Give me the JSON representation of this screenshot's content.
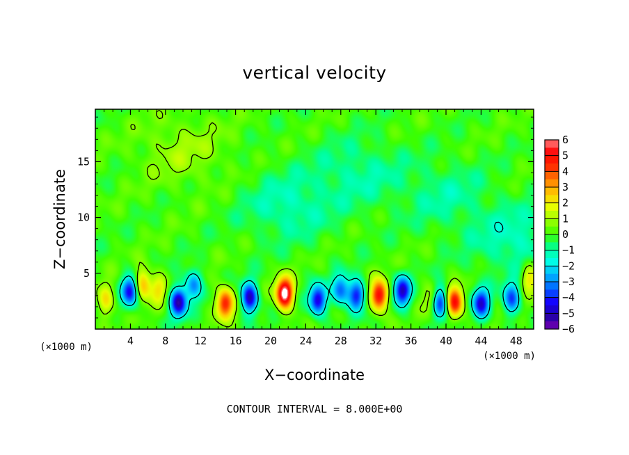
{
  "chart_data": {
    "type": "heatmap",
    "title": "vertical velocity",
    "xlabel": "X−coordinate",
    "ylabel": "Z−coordinate",
    "x_unit": "(×1000 m)",
    "y_unit": "(×1000 m)",
    "xlim": [
      0,
      50
    ],
    "ylim": [
      0,
      19.7
    ],
    "x_ticks": [
      4,
      8,
      12,
      16,
      20,
      24,
      28,
      32,
      36,
      40,
      44,
      48
    ],
    "x_tick_labels": [
      "4",
      "8",
      "12",
      "16",
      "20",
      "24",
      "28",
      "32",
      "36",
      "40",
      "44",
      "48"
    ],
    "y_ticks": [
      5,
      10,
      15
    ],
    "y_tick_labels": [
      "5",
      "10",
      "15"
    ],
    "colorbar": {
      "min": -6,
      "max": 6,
      "tick_labels": [
        "6",
        "5",
        "4",
        "3",
        "2",
        "1",
        "0",
        "−1",
        "−2",
        "−3",
        "−4",
        "−5",
        "−6"
      ],
      "colors": [
        "#7a00b0",
        "#1f00a8",
        "#1400ff",
        "#0064ff",
        "#00b4ff",
        "#00ffe6",
        "#00ff96",
        "#3cff00",
        "#96ff00",
        "#e6ff00",
        "#ffcc00",
        "#ff8000",
        "#ff3000",
        "#ff0000",
        "#ff8080"
      ]
    },
    "features": [
      {
        "x": 1.2,
        "z": 2.6,
        "w": 2.2
      },
      {
        "x": 4.0,
        "z": 3.4,
        "w": -4.5
      },
      {
        "x": 5.4,
        "z": 4.0,
        "w": 3.2
      },
      {
        "x": 7.2,
        "z": 3.6,
        "w": 2.0
      },
      {
        "x": 9.5,
        "z": 2.4,
        "w": -5.2
      },
      {
        "x": 11.2,
        "z": 4.0,
        "w": -3.0
      },
      {
        "x": 14.8,
        "z": 2.3,
        "w": 4.8
      },
      {
        "x": 17.6,
        "z": 2.8,
        "w": -5.0
      },
      {
        "x": 21.6,
        "z": 3.2,
        "w": 6.8
      },
      {
        "x": 25.4,
        "z": 2.6,
        "w": -4.8
      },
      {
        "x": 28.0,
        "z": 3.5,
        "w": -3.5
      },
      {
        "x": 29.8,
        "z": 3.0,
        "w": -4.2
      },
      {
        "x": 32.4,
        "z": 3.0,
        "w": 5.4
      },
      {
        "x": 35.0,
        "z": 3.4,
        "w": -4.8
      },
      {
        "x": 38.5,
        "z": 2.6,
        "w": 2.0
      },
      {
        "x": 39.3,
        "z": 2.4,
        "w": -5.0
      },
      {
        "x": 41.0,
        "z": 2.4,
        "w": 5.2
      },
      {
        "x": 44.0,
        "z": 2.3,
        "w": -4.5
      },
      {
        "x": 47.5,
        "z": 2.7,
        "w": -3.6
      },
      {
        "x": 49.5,
        "z": 4.6,
        "w": 2.4
      },
      {
        "x": 48.0,
        "z": 8.0,
        "w": -1.3
      },
      {
        "x": 22.0,
        "z": 11.0,
        "w": -1.2
      },
      {
        "x": 30.0,
        "z": 14.0,
        "w": -1.0
      },
      {
        "x": 10.0,
        "z": 16.0,
        "w": 0.9
      },
      {
        "x": 40.0,
        "z": 12.0,
        "w": -0.9
      }
    ],
    "contour_levels": [
      -1.5,
      0.7,
      8
    ],
    "contour_interval_label": "CONTOUR INTERVAL = 8.000E+00",
    "grid": false,
    "legend": "right"
  }
}
